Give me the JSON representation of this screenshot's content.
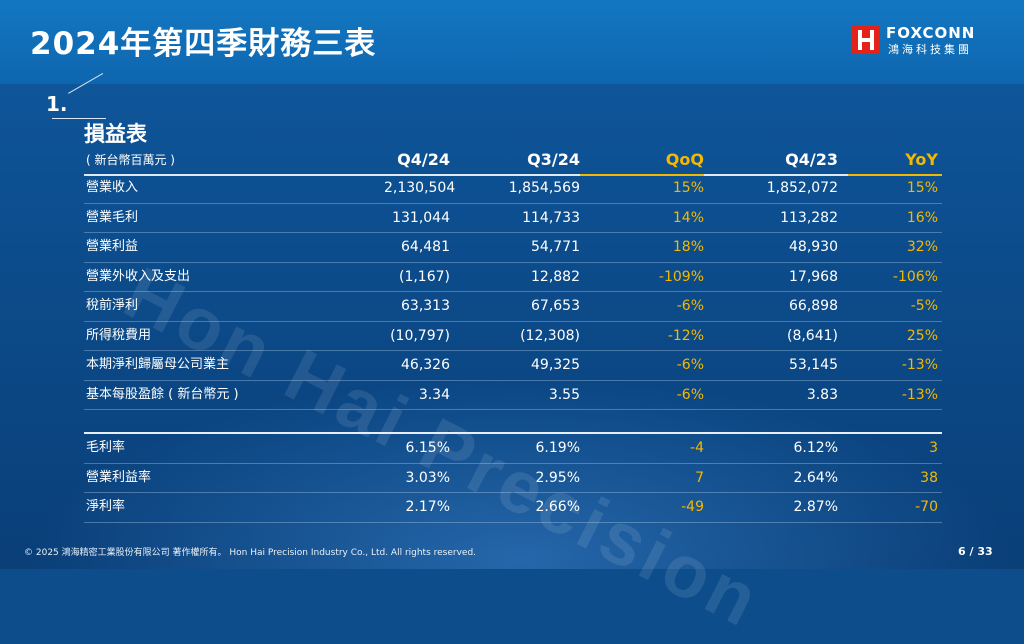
{
  "header": {
    "title": "2024年第四季財務三表",
    "logo_text": "FOXCONN",
    "logo_sub": "鴻海科技集團"
  },
  "watermark": "Hon Hai Precision",
  "section": {
    "number": "1.",
    "title": "損益表"
  },
  "table": {
    "unit_label": "( 新台幣百萬元 )",
    "columns": [
      "Q4/24",
      "Q3/24",
      "QoQ",
      "Q4/23",
      "YoY"
    ],
    "rows": [
      [
        "營業收入",
        "2,130,504",
        "1,854,569",
        "15%",
        "1,852,072",
        "15%"
      ],
      [
        "營業毛利",
        "131,044",
        "114,733",
        "14%",
        "113,282",
        "16%"
      ],
      [
        "營業利益",
        "64,481",
        "54,771",
        "18%",
        "48,930",
        "32%"
      ],
      [
        "營業外收入及支出",
        "(1,167)",
        "12,882",
        "-109%",
        "17,968",
        "-106%"
      ],
      [
        "稅前淨利",
        "63,313",
        "67,653",
        "-6%",
        "66,898",
        "-5%"
      ],
      [
        "所得稅費用",
        "(10,797)",
        "(12,308)",
        "-12%",
        "(8,641)",
        "25%"
      ],
      [
        "本期淨利歸屬母公司業主",
        "46,326",
        "49,325",
        "-6%",
        "53,145",
        "-13%"
      ],
      [
        "基本每股盈餘 ( 新台幣元 )",
        "3.34",
        "3.55",
        "-6%",
        "3.83",
        "-13%"
      ]
    ],
    "ratio_rows": [
      [
        "毛利率",
        "6.15%",
        "6.19%",
        "-4",
        "6.12%",
        "3"
      ],
      [
        "營業利益率",
        "3.03%",
        "2.95%",
        "7",
        "2.64%",
        "38"
      ],
      [
        "淨利率",
        "2.17%",
        "2.66%",
        "-49",
        "2.87%",
        "-70"
      ]
    ]
  },
  "footer": {
    "copyright": "© 2025 鴻海精密工業股份有限公司 著作權所有。 Hon Hai Precision Industry Co., Ltd. All rights reserved.",
    "page": "6 / 33"
  },
  "colors": {
    "accent": "#f5b800",
    "brand_red": "#e2231a",
    "background": "#0d4d8c"
  }
}
